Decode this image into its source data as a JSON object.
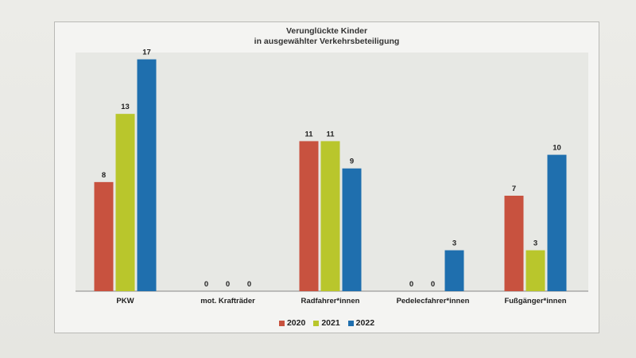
{
  "chart_data": {
    "type": "bar",
    "title": "Verunglückte Kinder",
    "subtitle": "in ausgewählter Verkehrsbeteiligung",
    "categories": [
      "PKW",
      "mot. Krafträder",
      "Radfahrer*innen",
      "Pedelecfahrer*innen",
      "Fußgänger*innen"
    ],
    "series": [
      {
        "name": "2020",
        "color": "#c8523f",
        "values": [
          8,
          0,
          11,
          0,
          7
        ]
      },
      {
        "name": "2021",
        "color": "#b9c62c",
        "values": [
          13,
          0,
          11,
          0,
          3
        ]
      },
      {
        "name": "2022",
        "color": "#1f6fae",
        "values": [
          17,
          0,
          9,
          3,
          10
        ]
      }
    ],
    "ylim": [
      0,
      17.5
    ],
    "grid": false,
    "legend_position": "bottom"
  }
}
